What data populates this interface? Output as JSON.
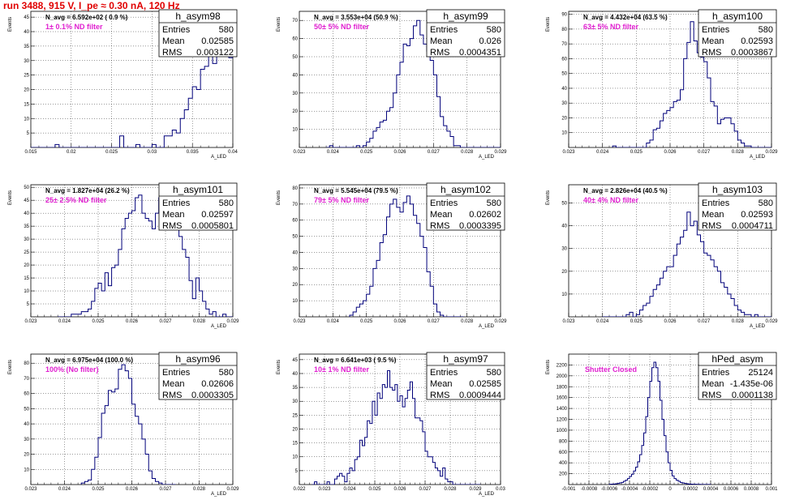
{
  "page_title": "run 3488,   915 V, I_pe ≈ 0.30 nA, 120 Hz",
  "chart_data": [
    {
      "type": "histogram",
      "name": "h_asym98",
      "navg": "N_avg = 6.592e+02 ( 0.9 %)",
      "filter": "1± 0.1% ND filter",
      "stats": {
        "entries": "580",
        "mean": "0.02585",
        "rms": "0.003122"
      },
      "xlabel": "A_LED",
      "ylabel": "Events",
      "xlim": [
        0.015,
        0.04
      ],
      "ylim": [
        0,
        47
      ],
      "xticks": [
        "0.015",
        "0.02",
        "0.025",
        "0.03",
        "0.035",
        "0.04"
      ],
      "yticks": [
        5,
        10,
        15,
        20,
        25,
        30,
        35,
        40,
        45
      ],
      "bin_start": 0.015,
      "bin_width": 0.0005,
      "values": [
        0,
        0,
        0,
        0,
        0,
        0,
        1,
        0,
        0,
        0,
        0,
        0,
        0,
        0,
        0,
        0,
        0,
        0,
        0,
        0,
        0,
        0,
        4,
        0,
        0,
        0,
        1,
        0,
        0,
        0,
        1,
        0,
        0,
        4,
        4,
        6,
        5,
        10,
        13,
        17,
        21,
        20,
        27,
        28,
        32,
        29,
        35,
        33,
        36,
        31,
        43,
        29,
        31,
        26,
        22,
        19,
        17,
        19,
        14,
        15,
        11,
        9,
        5,
        4,
        0,
        0,
        0,
        1,
        0,
        0,
        0,
        0,
        0,
        0,
        1,
        0,
        0,
        0,
        0,
        0,
        0,
        0,
        0,
        0,
        0,
        0,
        0,
        0,
        0,
        0,
        0,
        0,
        0,
        0,
        0,
        0,
        0,
        0,
        0,
        0
      ]
    },
    {
      "type": "histogram",
      "name": "h_asym99",
      "navg": "N_avg = 3.553e+04 (50.9 %)",
      "filter": "50± 5% ND filter",
      "stats": {
        "entries": "580",
        "mean": "0.026",
        "rms": "0.0004351"
      },
      "xlabel": "A_LED",
      "ylabel": "Events",
      "xlim": [
        0.023,
        0.029
      ],
      "ylim": [
        0,
        75
      ],
      "xticks": [
        "0.023",
        "0.024",
        "0.025",
        "0.026",
        "0.027",
        "0.028",
        "0.029"
      ],
      "yticks": [
        10,
        20,
        30,
        40,
        50,
        60,
        70
      ],
      "bin_start": 0.0238,
      "bin_width": 0.0001,
      "values": [
        0,
        1,
        0,
        0,
        0,
        0,
        0,
        0,
        0,
        1,
        0,
        1,
        3,
        5,
        9,
        11,
        14,
        15,
        20,
        22,
        30,
        40,
        47,
        57,
        56,
        60,
        67,
        70,
        62,
        57,
        53,
        48,
        40,
        28,
        17,
        12,
        9,
        6,
        1,
        1,
        0,
        0,
        0,
        0,
        0,
        0,
        0,
        0,
        0,
        0,
        0,
        0,
        0,
        0,
        0,
        0,
        0,
        0,
        0
      ]
    },
    {
      "type": "histogram",
      "name": "h_asym100",
      "navg": "N_avg = 4.432e+04 (63.5 %)",
      "filter": "63± 5% ND filter",
      "stats": {
        "entries": "580",
        "mean": "0.02593",
        "rms": "0.0003867"
      },
      "xlabel": "A_LED",
      "ylabel": "Events",
      "xlim": [
        0.023,
        0.029
      ],
      "ylim": [
        0,
        92
      ],
      "xticks": [
        "0.023",
        "0.024",
        "0.025",
        "0.026",
        "0.027",
        "0.028",
        "0.029"
      ],
      "yticks": [
        10,
        20,
        30,
        40,
        50,
        60,
        70,
        80,
        90
      ],
      "bin_start": 0.0243,
      "bin_width": 0.0001,
      "values": [
        1,
        0,
        0,
        0,
        0,
        0,
        0,
        0,
        0,
        0,
        3,
        5,
        12,
        13,
        18,
        23,
        25,
        27,
        31,
        32,
        39,
        60,
        71,
        85,
        72,
        64,
        61,
        58,
        47,
        31,
        28,
        16,
        19,
        20,
        20,
        16,
        11,
        5,
        3,
        1,
        1,
        0,
        0,
        0,
        0,
        0,
        0,
        0,
        0,
        0,
        0,
        0,
        0
      ]
    },
    {
      "type": "histogram",
      "name": "h_asym101",
      "navg": "N_avg = 1.827e+04 (26.2 %)",
      "filter": "25± 2.5% ND filter",
      "stats": {
        "entries": "580",
        "mean": "0.02597",
        "rms": "0.0005801"
      },
      "xlabel": "A_LED",
      "ylabel": "Events",
      "xlim": [
        0.023,
        0.029
      ],
      "ylim": [
        0,
        51
      ],
      "xticks": [
        "0.023",
        "0.024",
        "0.025",
        "0.026",
        "0.027",
        "0.028",
        "0.029"
      ],
      "yticks": [
        5,
        10,
        15,
        20,
        25,
        30,
        35,
        40,
        45,
        50
      ],
      "bin_start": 0.0238,
      "bin_width": 0.0001,
      "values": [
        0,
        0,
        0,
        0,
        1,
        1,
        1,
        2,
        2,
        3,
        6,
        11,
        13,
        10,
        17,
        12,
        19,
        20,
        26,
        34,
        38,
        40,
        41,
        46,
        47,
        40,
        38,
        37,
        34,
        40,
        46,
        45,
        41,
        40,
        39,
        34,
        31,
        26,
        23,
        14,
        7,
        15,
        10,
        6,
        3,
        1,
        2,
        0,
        0,
        1,
        0,
        0,
        0,
        0,
        0,
        0,
        0,
        0
      ]
    },
    {
      "type": "histogram",
      "name": "h_asym102",
      "navg": "N_avg = 5.545e+04 (79.5 %)",
      "filter": "79± 5% ND filter",
      "stats": {
        "entries": "580",
        "mean": "0.02602",
        "rms": "0.0003395"
      },
      "xlabel": "A_LED",
      "ylabel": "Events",
      "xlim": [
        0.023,
        0.029
      ],
      "ylim": [
        0,
        82
      ],
      "xticks": [
        "0.023",
        "0.024",
        "0.025",
        "0.026",
        "0.027",
        "0.028",
        "0.029"
      ],
      "yticks": [
        10,
        20,
        30,
        40,
        50,
        60,
        70,
        80
      ],
      "bin_start": 0.0245,
      "bin_width": 0.0001,
      "values": [
        1,
        3,
        6,
        8,
        10,
        14,
        19,
        30,
        35,
        46,
        51,
        62,
        70,
        73,
        68,
        65,
        71,
        75,
        70,
        63,
        58,
        50,
        43,
        28,
        19,
        8,
        3,
        1,
        0,
        0,
        0,
        0,
        0,
        0
      ]
    },
    {
      "type": "histogram",
      "name": "h_asym103",
      "navg": "N_avg = 2.826e+04 (40.5 %)",
      "filter": "40± 4% ND filter",
      "stats": {
        "entries": "580",
        "mean": "0.02593",
        "rms": "0.0004711"
      },
      "xlabel": "A_LED",
      "ylabel": "Events",
      "xlim": [
        0.023,
        0.029
      ],
      "ylim": [
        0,
        58
      ],
      "xticks": [
        "0.023",
        "0.024",
        "0.025",
        "0.026",
        "0.027",
        "0.028",
        "0.029"
      ],
      "yticks": [
        10,
        20,
        30,
        40,
        50
      ],
      "bin_start": 0.024,
      "bin_width": 0.0001,
      "values": [
        0,
        0,
        0,
        0,
        0,
        0,
        0,
        1,
        2,
        0,
        1,
        3,
        5,
        6,
        9,
        12,
        14,
        17,
        20,
        22,
        22,
        27,
        32,
        35,
        38,
        46,
        40,
        42,
        36,
        33,
        28,
        27,
        25,
        22,
        20,
        15,
        13,
        10,
        8,
        5,
        3,
        2,
        1,
        1,
        0,
        1,
        0,
        0,
        0,
        0
      ]
    },
    {
      "type": "histogram",
      "name": "h_asym96",
      "navg": "N_avg = 6.975e+04 (100.0 %)",
      "filter": "100% (No filter)",
      "stats": {
        "entries": "580",
        "mean": "0.02606",
        "rms": "0.0003305"
      },
      "xlabel": "A_LED",
      "ylabel": "Events",
      "xlim": [
        0.023,
        0.029
      ],
      "ylim": [
        0,
        86
      ],
      "xticks": [
        "0.023",
        "0.024",
        "0.025",
        "0.026",
        "0.027",
        "0.028",
        "0.029"
      ],
      "yticks": [
        10,
        20,
        30,
        40,
        50,
        60,
        70,
        80
      ],
      "bin_start": 0.0245,
      "bin_width": 0.0001,
      "values": [
        1,
        2,
        3,
        10,
        18,
        31,
        47,
        52,
        62,
        61,
        63,
        76,
        79,
        75,
        70,
        53,
        45,
        40,
        30,
        20,
        9,
        4,
        2,
        1,
        0,
        0,
        0,
        0
      ]
    },
    {
      "type": "histogram",
      "name": "h_asym97",
      "navg": "N_avg = 6.641e+03 ( 9.5 %)",
      "filter": "10± 1% ND filter",
      "stats": {
        "entries": "580",
        "mean": "0.02585",
        "rms": "0.0009444"
      },
      "xlabel": "A_LED",
      "ylabel": "Events",
      "xlim": [
        0.022,
        0.03
      ],
      "ylim": [
        0,
        47
      ],
      "xticks": [
        "0.022",
        "0.023",
        "0.024",
        "0.025",
        "0.026",
        "0.027",
        "0.028",
        "0.029",
        "0.03"
      ],
      "yticks": [
        5,
        10,
        15,
        20,
        25,
        30,
        35,
        40,
        45
      ],
      "bin_start": 0.0225,
      "bin_width": 0.0001,
      "values": [
        0,
        1,
        0,
        0,
        0,
        0,
        1,
        0,
        0,
        2,
        3,
        4,
        3,
        1,
        4,
        6,
        5,
        9,
        10,
        16,
        14,
        17,
        23,
        22,
        30,
        25,
        33,
        31,
        36,
        35,
        41,
        35,
        34,
        36,
        30,
        32,
        28,
        31,
        34,
        37,
        31,
        24,
        24,
        23,
        19,
        12,
        10,
        10,
        8,
        6,
        5,
        3,
        6,
        2,
        1,
        1,
        0,
        0,
        0,
        0,
        0,
        0,
        0,
        0,
        0,
        0,
        0
      ]
    },
    {
      "type": "histogram",
      "name": "hPed_asym",
      "navg": "",
      "filter": "Shutter Closed",
      "stats": {
        "entries": "25124",
        "mean": "-1.435e-06",
        "rms": "0.0001138"
      },
      "xlabel": "",
      "ylabel": "Events",
      "xlim": [
        -0.001,
        0.001
      ],
      "ylim": [
        0,
        2400
      ],
      "xticks": [
        "-0.001",
        "-0.0008",
        "-0.0006",
        "-0.0004",
        "-0.0002",
        "0",
        "0.0002",
        "0.0004",
        "0.0006",
        "0.0008",
        "0.001"
      ],
      "yticks": [
        200,
        400,
        600,
        800,
        1000,
        1200,
        1400,
        1600,
        1800,
        2000,
        2200
      ],
      "bin_start": -0.0006,
      "bin_width": 2e-05,
      "values": [
        5,
        8,
        10,
        15,
        20,
        30,
        40,
        60,
        80,
        110,
        150,
        190,
        250,
        320,
        420,
        550,
        720,
        950,
        1250,
        1600,
        1900,
        2150,
        2250,
        2150,
        1900,
        1550,
        1200,
        900,
        600,
        400,
        260,
        160,
        110,
        80,
        60,
        40,
        30,
        20,
        15,
        10,
        8,
        5,
        5,
        3,
        3,
        2,
        2,
        1,
        1,
        1
      ]
    }
  ]
}
